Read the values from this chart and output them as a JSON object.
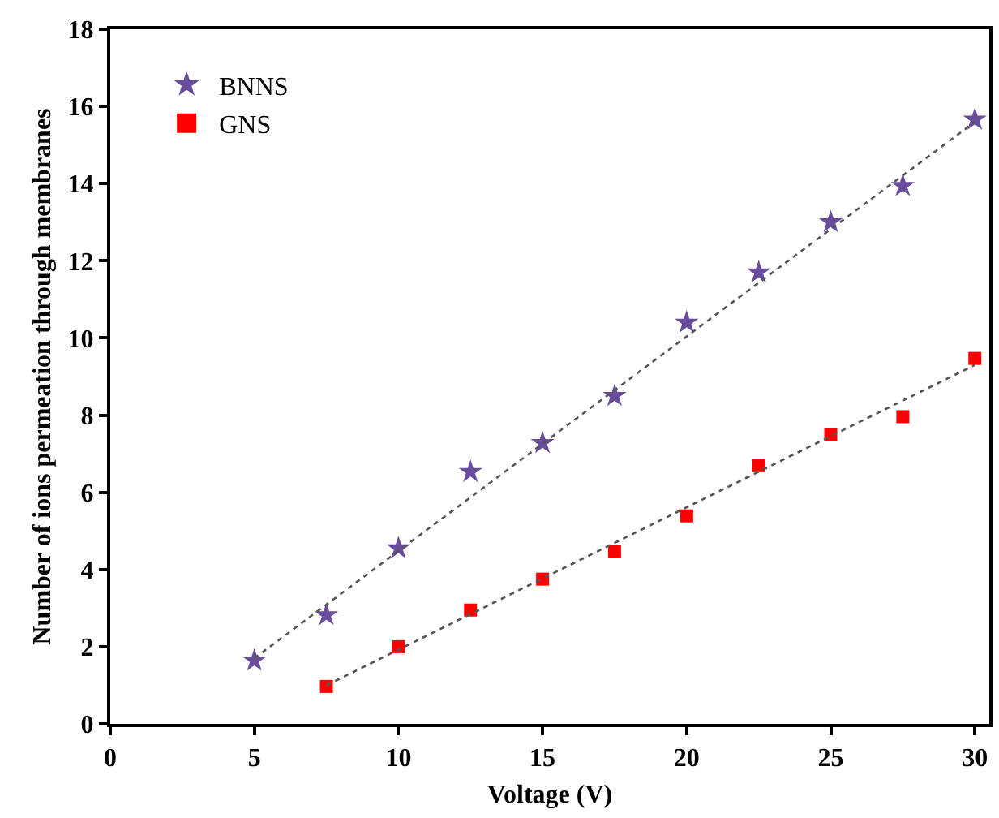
{
  "chart_data": {
    "type": "scatter",
    "xlabel": "Voltage (V)",
    "ylabel": "Number of ions permeation through membranes",
    "x": [
      5,
      7.5,
      10,
      12.5,
      15,
      17.5,
      20,
      22.5,
      25,
      27.5,
      30
    ],
    "series": [
      {
        "name": "BNNS",
        "color": "#6a4c9c",
        "marker": "star",
        "values": [
          1.64,
          2.82,
          4.55,
          6.53,
          7.28,
          8.5,
          10.4,
          11.7,
          13.0,
          13.94,
          15.66
        ]
      },
      {
        "name": "GNS",
        "color": "#ff0000",
        "marker": "square",
        "x": [
          7.5,
          10,
          12.5,
          15,
          17.5,
          20,
          22.5,
          25,
          27.5,
          30
        ],
        "values": [
          0.97,
          2.0,
          2.95,
          3.75,
          4.46,
          5.39,
          6.69,
          7.49,
          7.96,
          9.47
        ]
      },
      {
        "type": "line",
        "color": "#555555",
        "line_style": "dotted",
        "x": [
          5,
          30
        ],
        "values": [
          1.7,
          15.6
        ]
      },
      {
        "type": "line",
        "color": "#555555",
        "line_style": "dotted",
        "x": [
          7.5,
          30
        ],
        "values": [
          1.0,
          9.3
        ]
      }
    ],
    "xlim": [
      0,
      30.5
    ],
    "xticks": [
      0,
      5,
      10,
      15,
      20,
      25,
      30
    ],
    "ylim": [
      0,
      18
    ],
    "yticks": [
      0,
      2,
      4,
      6,
      8,
      10,
      12,
      14,
      16,
      18
    ],
    "legend": "top left"
  }
}
